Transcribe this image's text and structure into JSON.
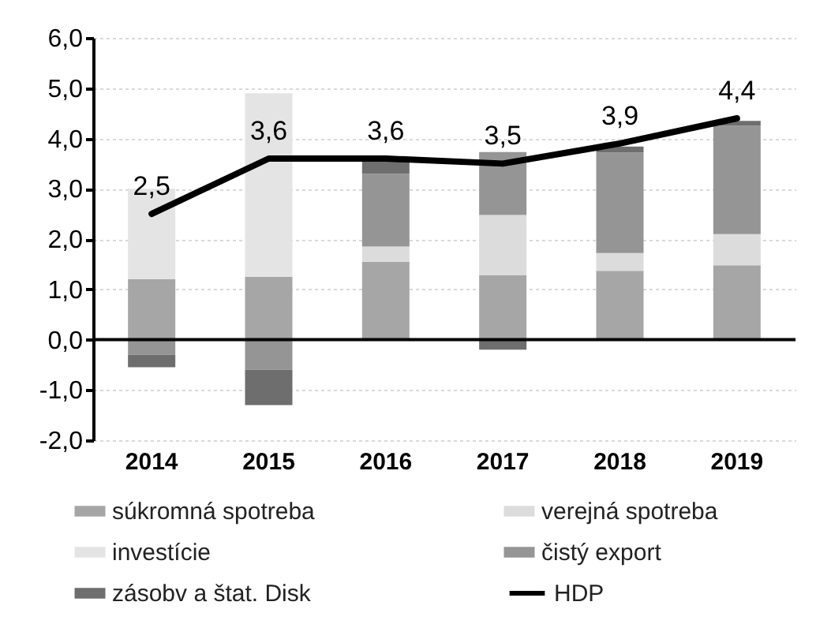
{
  "chart_data": {
    "type": "bar",
    "stacked": true,
    "categories": [
      "2014",
      "2015",
      "2016",
      "2017",
      "2018",
      "2019"
    ],
    "series": [
      {
        "name": "súkromná spotreba",
        "color": "#a6a6a6",
        "values": [
          1.2,
          1.25,
          1.55,
          1.28,
          1.37,
          1.48
        ]
      },
      {
        "name": "verejná spotreba",
        "color": "#dcdcdc",
        "values": [
          null,
          null,
          0.3,
          1.2,
          0.35,
          0.62
        ]
      },
      {
        "name": "investície",
        "color": "#e4e4e4",
        "values": [
          1.8,
          3.65,
          null,
          null,
          null,
          null
        ]
      },
      {
        "name": "čistý export",
        "color": "#959595",
        "values": [
          -0.3,
          -0.6,
          1.45,
          1.25,
          2.0,
          2.15
        ]
      },
      {
        "name": "zásobv a štat. Disk",
        "color": "#6e6e6e",
        "values": [
          -0.25,
          -0.7,
          0.3,
          -0.2,
          0.12,
          0.1
        ]
      },
      {
        "name": "HDP",
        "type": "line",
        "color": "#000000",
        "values": [
          2.5,
          3.6,
          3.6,
          3.5,
          3.9,
          4.4
        ],
        "value_labels": [
          "2,5",
          "3,6",
          "3,6",
          "3,5",
          "3,9",
          "4,4"
        ]
      }
    ],
    "ylim": [
      -2,
      6
    ],
    "yticks": [
      {
        "value": -2,
        "label": "-2,0"
      },
      {
        "value": -1,
        "label": "-1,0"
      },
      {
        "value": 0,
        "label": "0,0"
      },
      {
        "value": 1,
        "label": "1,0"
      },
      {
        "value": 2,
        "label": "2,0"
      },
      {
        "value": 3,
        "label": "3,0"
      },
      {
        "value": 4,
        "label": "4,0"
      },
      {
        "value": 5,
        "label": "5,0"
      },
      {
        "value": 6,
        "label": "6,0"
      }
    ],
    "grid": "y",
    "legend": "bottom"
  }
}
